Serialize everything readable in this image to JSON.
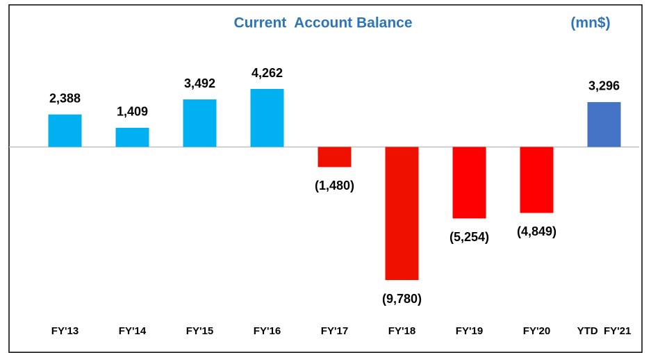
{
  "chart_data": {
    "type": "bar",
    "title": "Current  Account Balance",
    "unit": "(mn$)",
    "categories": [
      "FY'13",
      "FY'14",
      "FY'15",
      "FY'16",
      "FY'17",
      "FY'18",
      "FY'19",
      "FY'20",
      "YTD  FY'21"
    ],
    "values": [
      2388,
      1409,
      3492,
      4262,
      -1480,
      -9780,
      -5254,
      -4849,
      3296
    ],
    "value_labels": [
      "2,388",
      "1,409",
      "3,492",
      "4,262",
      "(1,480)",
      "(9,780)",
      "(5,254)",
      "(4,849)",
      "3,296"
    ],
    "colors": [
      "#00b0f0",
      "#00b0f0",
      "#00b0f0",
      "#00b0f0",
      "#ee1100",
      "#ee1100",
      "#ff0000",
      "#ff0000",
      "#4472c4"
    ]
  }
}
